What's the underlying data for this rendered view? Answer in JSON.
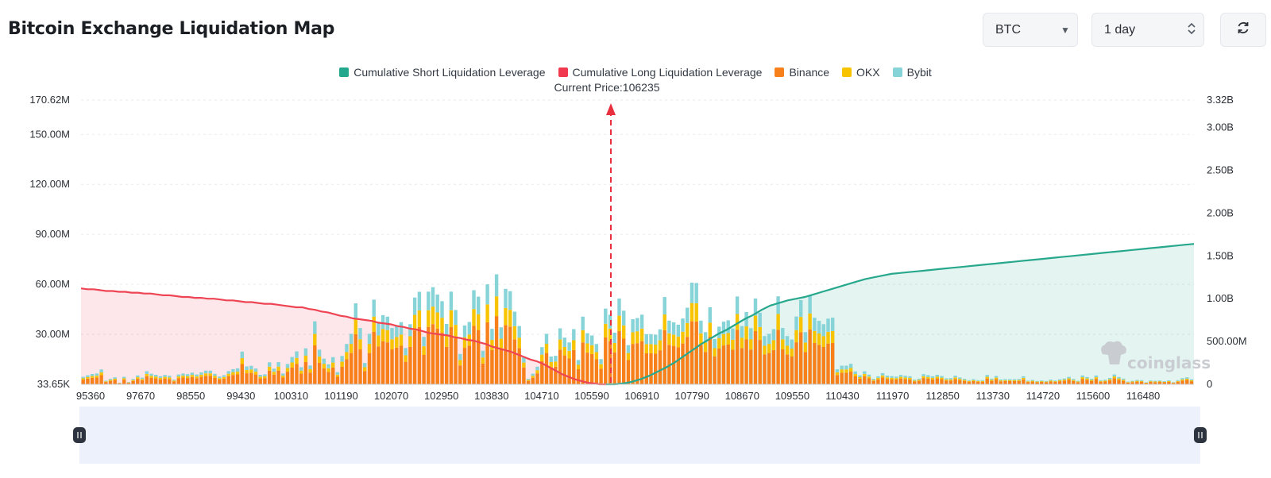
{
  "header": {
    "title": "Bitcoin Exchange Liquidation Map",
    "symbol": "BTC",
    "interval": "1 day"
  },
  "watermark": "coinglass",
  "chart_data": {
    "type": "bar",
    "title": "Bitcoin Exchange Liquidation Map",
    "current_price_label": "Current Price:106235",
    "current_price": 106235,
    "legend": [
      {
        "name": "Cumulative Short Liquidation Leverage",
        "color": "#23a88e"
      },
      {
        "name": "Cumulative Long Liquidation Leverage",
        "color": "#f0394f"
      },
      {
        "name": "Binance",
        "color": "#f7801a"
      },
      {
        "name": "OKX",
        "color": "#f8c300"
      },
      {
        "name": "Bybit",
        "color": "#86d3d8"
      }
    ],
    "x_tick_labels": [
      "95360",
      "97670",
      "98550",
      "99430",
      "100310",
      "101190",
      "102070",
      "102950",
      "103830",
      "104710",
      "105590",
      "106910",
      "107790",
      "108670",
      "109550",
      "110430",
      "111970",
      "112850",
      "113730",
      "114720",
      "115600",
      "116480"
    ],
    "y_left_tick_labels": [
      "33.65K",
      "30.00M",
      "60.00M",
      "90.00M",
      "120.00M",
      "150.00M",
      "170.62M"
    ],
    "y_left_tick_values": [
      0,
      30000000,
      60000000,
      90000000,
      120000000,
      150000000,
      170620000
    ],
    "y_left_range": [
      0,
      170620000
    ],
    "y_right_tick_labels": [
      "0",
      "500.00M",
      "1.00B",
      "1.50B",
      "2.00B",
      "2.50B",
      "3.00B",
      "3.32B"
    ],
    "y_right_tick_values": [
      0,
      500000000,
      1000000000,
      1500000000,
      2000000000,
      2500000000,
      3000000000,
      3320000000
    ],
    "y_right_range": [
      0,
      3320000000
    ],
    "bar_heights_total_M": [
      4.5,
      5.4,
      6.2,
      6.5,
      8.9,
      2.2,
      3.3,
      4.2,
      1.0,
      4.5,
      1.4,
      3.2,
      5.3,
      4.0,
      7.8,
      6.4,
      5.7,
      4.8,
      5.6,
      5.1,
      2.8,
      5.9,
      6.5,
      6.1,
      7.0,
      5.9,
      7.2,
      8.2,
      8.2,
      6.3,
      4.6,
      5.5,
      7.9,
      9.1,
      9.6,
      19.6,
      10.7,
      11.1,
      9.5,
      5.7,
      6.0,
      13.2,
      9.4,
      13.3,
      6.5,
      12.2,
      16.4,
      19.8,
      10.3,
      21.6,
      11.3,
      37.8,
      20.8,
      15.4,
      12.0,
      16.3,
      7.3,
      17.0,
      24.2,
      30.3,
      48.6,
      33.8,
      12.8,
      30.3,
      50.8,
      36.7,
      41.5,
      40.6,
      33.8,
      35.5,
      37.3,
      21.8,
      36.1,
      52.1,
      55.5,
      28.5,
      55.6,
      58.3,
      53.9,
      49.9,
      36.2,
      55.6,
      44.6,
      18.2,
      35.3,
      37.4,
      56.5,
      52.6,
      20.1,
      60.0,
      33.3,
      66.0,
      34.2,
      57.3,
      55.9,
      43.6,
      35.0,
      16.3,
      3.3,
      6.4,
      10.6,
      22.3,
      30.3,
      16.7,
      17.1,
      33.6,
      28.0,
      25.1,
      33.1,
      14.6,
      40.6,
      30.7,
      29.3,
      24.2,
      15.1,
      45.4,
      41.8,
      31.0,
      51.5,
      44.2,
      23.5,
      39.1,
      39.8,
      41.8,
      30.1,
      30.1,
      29.8,
      33.0,
      52.4,
      38.2,
      37.2,
      35.8,
      39.5,
      46.0,
      61.0,
      60.8,
      38.2,
      31.3,
      46.3,
      27.1,
      34.6,
      37.6,
      38.4,
      33.5,
      52.7,
      35.0,
      43.4,
      33.7,
      51.5,
      43.0,
      29.0,
      30.3,
      33.1,
      52.8,
      33.8,
      29.0,
      26.9,
      40.7,
      50.5,
      31.3,
      53.2,
      40.0,
      38.1,
      36.1,
      39.4,
      40.0,
      9.0,
      11.2,
      11.2,
      12.3,
      7.7,
      5.4,
      7.8,
      5.8,
      3.3,
      4.8,
      6.7,
      5.2,
      4.9,
      4.6,
      5.6,
      5.1,
      4.8,
      2.8,
      3.4,
      6.1,
      5.5,
      4.8,
      5.7,
      5.0,
      3.6,
      3.7,
      5.2,
      4.1,
      3.3,
      2.5,
      3.1,
      2.5,
      2.5,
      5.6,
      3.4,
      5.0,
      2.9,
      3.1,
      3.1,
      3.1,
      3.2,
      4.8,
      2.2,
      2.6,
      2.0,
      2.3,
      2.0,
      2.8,
      2.3,
      3.0,
      3.5,
      4.5,
      3.2,
      2.1,
      5.3,
      4.4,
      3.3,
      5.3,
      2.5,
      2.7,
      3.8,
      5.9,
      4.4,
      3.4,
      1.6,
      2.1,
      2.6,
      2.5,
      1.2,
      2.3,
      2.1,
      2.3,
      1.9,
      2.4,
      1.3,
      2.5,
      3.7,
      4.2,
      3.0
    ],
    "long_cumulative_B": [
      1.12,
      1.11,
      1.11,
      1.1,
      1.09,
      1.09,
      1.08,
      1.08,
      1.07,
      1.07,
      1.06,
      1.06,
      1.05,
      1.04,
      1.04,
      1.03,
      1.02,
      1.02,
      1.01,
      1.01,
      1.0,
      1.0,
      0.99,
      0.98,
      0.98,
      0.97,
      0.96,
      0.96,
      0.95,
      0.94,
      0.94,
      0.93,
      0.92,
      0.91,
      0.9,
      0.9,
      0.88,
      0.87,
      0.85,
      0.84,
      0.82,
      0.8,
      0.79,
      0.77,
      0.76,
      0.75,
      0.74,
      0.72,
      0.71,
      0.7,
      0.68,
      0.67,
      0.65,
      0.64,
      0.62,
      0.6,
      0.59,
      0.58,
      0.57,
      0.55,
      0.54,
      0.52,
      0.51,
      0.49,
      0.47,
      0.44,
      0.42,
      0.4,
      0.38,
      0.35,
      0.32,
      0.29,
      0.27,
      0.24,
      0.2,
      0.16,
      0.12,
      0.09,
      0.06,
      0.04,
      0.02,
      0.01,
      0.0,
      0.0
    ],
    "short_cumulative_B": [
      0.0,
      0.0,
      0.01,
      0.03,
      0.06,
      0.1,
      0.15,
      0.2,
      0.26,
      0.33,
      0.4,
      0.47,
      0.53,
      0.59,
      0.64,
      0.7,
      0.76,
      0.81,
      0.87,
      0.92,
      0.95,
      0.98,
      1.0,
      1.02,
      1.05,
      1.08,
      1.11,
      1.14,
      1.17,
      1.2,
      1.23,
      1.25,
      1.27,
      1.29,
      1.3,
      1.31,
      1.32,
      1.33,
      1.34,
      1.35,
      1.36,
      1.37,
      1.38,
      1.39,
      1.4,
      1.41,
      1.42,
      1.43,
      1.44,
      1.45,
      1.46,
      1.47,
      1.48,
      1.49,
      1.5,
      1.51,
      1.52,
      1.53,
      1.54,
      1.55,
      1.56,
      1.57,
      1.58,
      1.59,
      1.6,
      1.61,
      1.62,
      1.63,
      1.64
    ]
  }
}
